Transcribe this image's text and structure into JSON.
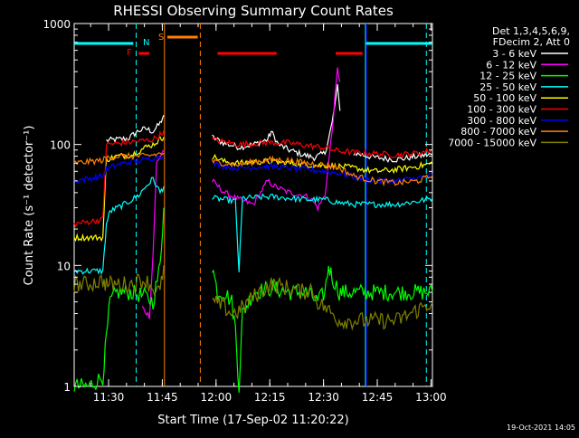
{
  "chart_data": {
    "type": "line",
    "title": "RHESSI Observing Summary Count Rates",
    "xlabel": "Start Time (17-Sep-02 11:20:22)",
    "ylabel": "Count Rate (s⁻¹ detector⁻¹)",
    "footer": "19-Oct-2021 14:05",
    "y_scale": "log",
    "ylim": [
      1,
      1000
    ],
    "xlim_minutes": [
      0,
      100
    ],
    "xtick_labels": [
      {
        "t": 9.6,
        "label": "11:30"
      },
      {
        "t": 24.6,
        "label": "11:45"
      },
      {
        "t": 39.6,
        "label": "12:00"
      },
      {
        "t": 54.6,
        "label": "12:15"
      },
      {
        "t": 69.6,
        "label": "12:30"
      },
      {
        "t": 84.6,
        "label": "12:45"
      },
      {
        "t": 99.6,
        "label": "13:00"
      }
    ],
    "ytick_labels": [
      {
        "v": 1,
        "label": "1"
      },
      {
        "v": 10,
        "label": "10"
      },
      {
        "v": 100,
        "label": "100"
      },
      {
        "v": 1000,
        "label": "1000"
      }
    ],
    "legend": {
      "placement": "right",
      "header": [
        "Det 1,3,4,5,6,9,",
        "FDecim 2, Att 0"
      ]
    },
    "series": [
      {
        "name": "3 - 6 keV",
        "color": "#ffffff",
        "points": [
          [
            9,
            108
          ],
          [
            15,
            112
          ],
          [
            18,
            130
          ],
          [
            20,
            135
          ],
          [
            22,
            128
          ],
          [
            24,
            150
          ],
          [
            25,
            175
          ],
          [
            25.2,
            null
          ],
          [
            38.5,
            115
          ],
          [
            42,
            102
          ],
          [
            46,
            95
          ],
          [
            50,
            100
          ],
          [
            54,
            110
          ],
          [
            55,
            128
          ],
          [
            57,
            100
          ],
          [
            60,
            90
          ],
          [
            64,
            82
          ],
          [
            67,
            78
          ],
          [
            70,
            85
          ],
          [
            72,
            150
          ],
          [
            73.5,
            300
          ],
          [
            74.2,
            190
          ],
          [
            74.6,
            null
          ],
          [
            78,
            85
          ],
          [
            84,
            78
          ],
          [
            90,
            75
          ],
          [
            96,
            80
          ],
          [
            100,
            83
          ]
        ]
      },
      {
        "name": "6 - 12 keV",
        "color": "#ff00ff",
        "points": [
          [
            19,
            4.5
          ],
          [
            21,
            3.8
          ],
          [
            22,
            12
          ],
          [
            23,
            70
          ],
          [
            24,
            80
          ],
          [
            25,
            90
          ],
          [
            25.2,
            null
          ],
          [
            38.5,
            50
          ],
          [
            42,
            40
          ],
          [
            46,
            35
          ],
          [
            50,
            32
          ],
          [
            54,
            50
          ],
          [
            56,
            45
          ],
          [
            60,
            40
          ],
          [
            64,
            38
          ],
          [
            66,
            36
          ],
          [
            68,
            30
          ],
          [
            70,
            38
          ],
          [
            72,
            130
          ],
          [
            73.5,
            420
          ],
          [
            74.2,
            330
          ],
          [
            74.6,
            null
          ]
        ]
      },
      {
        "name": "12 - 25 keV",
        "color": "#00ff00",
        "points": [
          [
            0,
            1
          ],
          [
            4,
            1
          ],
          [
            8,
            1.2
          ],
          [
            9,
            2.5
          ],
          [
            10,
            5
          ],
          [
            12,
            6
          ],
          [
            16,
            6
          ],
          [
            20,
            5.5
          ],
          [
            22,
            5
          ],
          [
            24,
            10
          ],
          [
            25,
            30
          ],
          [
            25.2,
            null
          ],
          [
            38.5,
            10
          ],
          [
            40,
            6
          ],
          [
            42,
            6
          ],
          [
            44,
            5
          ],
          [
            45,
            3
          ],
          [
            46,
            1
          ],
          [
            47,
            4
          ],
          [
            50,
            6
          ],
          [
            55,
            6.5
          ],
          [
            60,
            6
          ],
          [
            65,
            6
          ],
          [
            68,
            5
          ],
          [
            70,
            6
          ],
          [
            71,
            10
          ],
          [
            72,
            8
          ],
          [
            74,
            6
          ],
          [
            75,
            6
          ],
          [
            80,
            6
          ],
          [
            86,
            6
          ],
          [
            94,
            6
          ],
          [
            100,
            6
          ]
        ]
      },
      {
        "name": "25 - 50 keV",
        "color": "#00ffff",
        "points": [
          [
            0,
            9
          ],
          [
            4,
            9
          ],
          [
            8,
            9
          ],
          [
            9,
            22
          ],
          [
            10,
            28
          ],
          [
            14,
            32
          ],
          [
            18,
            38
          ],
          [
            20,
            45
          ],
          [
            22,
            52
          ],
          [
            24,
            40
          ],
          [
            25,
            45
          ],
          [
            25.2,
            null
          ],
          [
            38.5,
            36
          ],
          [
            42,
            35
          ],
          [
            45,
            34
          ],
          [
            46,
            9
          ],
          [
            47,
            36
          ],
          [
            55,
            37
          ],
          [
            65,
            35
          ],
          [
            70,
            35
          ],
          [
            74,
            33
          ],
          [
            78,
            32
          ],
          [
            84,
            32
          ],
          [
            90,
            32
          ],
          [
            96,
            34
          ],
          [
            100,
            36
          ]
        ]
      },
      {
        "name": "50 - 100 keV",
        "color": "#ffff00",
        "points": [
          [
            0,
            17
          ],
          [
            4,
            17
          ],
          [
            8,
            17
          ],
          [
            9,
            75
          ],
          [
            12,
            80
          ],
          [
            16,
            82
          ],
          [
            20,
            95
          ],
          [
            22,
            100
          ],
          [
            24,
            110
          ],
          [
            25,
            115
          ],
          [
            25.2,
            null
          ],
          [
            38.5,
            80
          ],
          [
            42,
            72
          ],
          [
            46,
            70
          ],
          [
            50,
            72
          ],
          [
            55,
            72
          ],
          [
            60,
            70
          ],
          [
            65,
            68
          ],
          [
            70,
            67
          ],
          [
            74,
            66
          ],
          [
            78,
            64
          ],
          [
            84,
            60
          ],
          [
            90,
            62
          ],
          [
            96,
            66
          ],
          [
            100,
            70
          ]
        ]
      },
      {
        "name": "100 - 300 keV",
        "color": "#ff0000",
        "points": [
          [
            0,
            22
          ],
          [
            4,
            23
          ],
          [
            8,
            24
          ],
          [
            9,
            100
          ],
          [
            12,
            102
          ],
          [
            16,
            105
          ],
          [
            20,
            108
          ],
          [
            22,
            110
          ],
          [
            24,
            120
          ],
          [
            25,
            130
          ],
          [
            25.2,
            null
          ],
          [
            38.5,
            110
          ],
          [
            42,
            105
          ],
          [
            46,
            100
          ],
          [
            50,
            102
          ],
          [
            55,
            104
          ],
          [
            60,
            103
          ],
          [
            65,
            98
          ],
          [
            70,
            94
          ],
          [
            74,
            88
          ],
          [
            78,
            86
          ],
          [
            84,
            84
          ],
          [
            90,
            82
          ],
          [
            96,
            85
          ],
          [
            100,
            90
          ]
        ]
      },
      {
        "name": "300 - 800 keV",
        "color": "#0000ff",
        "points": [
          [
            0,
            50
          ],
          [
            4,
            52
          ],
          [
            8,
            55
          ],
          [
            9,
            62
          ],
          [
            12,
            68
          ],
          [
            16,
            72
          ],
          [
            20,
            75
          ],
          [
            22,
            78
          ],
          [
            24,
            80
          ],
          [
            25,
            82
          ],
          [
            25.2,
            null
          ],
          [
            38.5,
            70
          ],
          [
            42,
            66
          ],
          [
            46,
            64
          ],
          [
            50,
            65
          ],
          [
            55,
            66
          ],
          [
            60,
            64
          ],
          [
            65,
            62
          ],
          [
            70,
            60
          ],
          [
            74,
            58
          ],
          [
            78,
            54
          ],
          [
            84,
            50
          ],
          [
            90,
            50
          ],
          [
            96,
            53
          ],
          [
            100,
            56
          ]
        ]
      },
      {
        "name": "800 - 7000 keV",
        "color": "#ff8000",
        "points": [
          [
            0,
            70
          ],
          [
            4,
            72
          ],
          [
            8,
            74
          ],
          [
            9,
            78
          ],
          [
            12,
            80
          ],
          [
            16,
            80
          ],
          [
            20,
            80
          ],
          [
            22,
            82
          ],
          [
            24,
            84
          ],
          [
            25,
            85
          ],
          [
            25.2,
            null
          ],
          [
            38.5,
            72
          ],
          [
            42,
            70
          ],
          [
            46,
            68
          ],
          [
            50,
            72
          ],
          [
            55,
            75
          ],
          [
            60,
            74
          ],
          [
            65,
            70
          ],
          [
            70,
            68
          ],
          [
            74,
            64
          ],
          [
            78,
            55
          ],
          [
            84,
            50
          ],
          [
            90,
            48
          ],
          [
            96,
            50
          ],
          [
            100,
            55
          ]
        ]
      },
      {
        "name": "7000 - 15000 keV",
        "color": "#808000",
        "points": [
          [
            0,
            7
          ],
          [
            4,
            7
          ],
          [
            8,
            7.5
          ],
          [
            9,
            7
          ],
          [
            12,
            7
          ],
          [
            16,
            7
          ],
          [
            18,
            7.5
          ],
          [
            20,
            7.5
          ],
          [
            22,
            6.5
          ],
          [
            24,
            6
          ],
          [
            25,
            10
          ],
          [
            25.2,
            null
          ],
          [
            38.5,
            5
          ],
          [
            40,
            4.8
          ],
          [
            42,
            4.5
          ],
          [
            44,
            4
          ],
          [
            46,
            4.2
          ],
          [
            50,
            5.5
          ],
          [
            55,
            7
          ],
          [
            60,
            6.5
          ],
          [
            64,
            6
          ],
          [
            66,
            6.5
          ],
          [
            68,
            5
          ],
          [
            70,
            4.5
          ],
          [
            74,
            3.5
          ],
          [
            78,
            3.5
          ],
          [
            84,
            3.5
          ],
          [
            90,
            3.5
          ],
          [
            94,
            4
          ],
          [
            100,
            5
          ]
        ]
      }
    ],
    "state_bars": [
      {
        "label": "",
        "color": "#00ffff",
        "t_start": 0,
        "t_end": 16.5,
        "level": 0
      },
      {
        "label": "",
        "color": "#00ffff",
        "t_start": 81.5,
        "t_end": 100,
        "level": 0
      },
      {
        "label": "F",
        "color": "#ff0000",
        "t_start": 18,
        "t_end": 21,
        "level": 1
      },
      {
        "label": "N",
        "color": "#00ffff",
        "t_start": null,
        "t_end": null,
        "level": 0
      },
      {
        "label": "S",
        "color": "#ff8000",
        "t_start": 26,
        "t_end": 34.5,
        "level": -1
      },
      {
        "label": "",
        "color": "#ff0000",
        "t_start": 40,
        "t_end": 56.5,
        "level": 1
      },
      {
        "label": "",
        "color": "#ff0000",
        "t_start": 73,
        "t_end": 80.5,
        "level": 1
      }
    ],
    "vlines": [
      {
        "t": 17.3,
        "color": "#00ffff",
        "style": "dashed"
      },
      {
        "t": 25.2,
        "color": "#ff8000",
        "style": "solid"
      },
      {
        "t": 35.2,
        "color": "#ff8000",
        "style": "dashed"
      },
      {
        "t": 81.3,
        "color": "#00ffff",
        "style": "solid"
      },
      {
        "t": 81.6,
        "color": "#0000ff",
        "style": "solid"
      },
      {
        "t": 98.3,
        "color": "#00ffff",
        "style": "dashed"
      }
    ]
  }
}
